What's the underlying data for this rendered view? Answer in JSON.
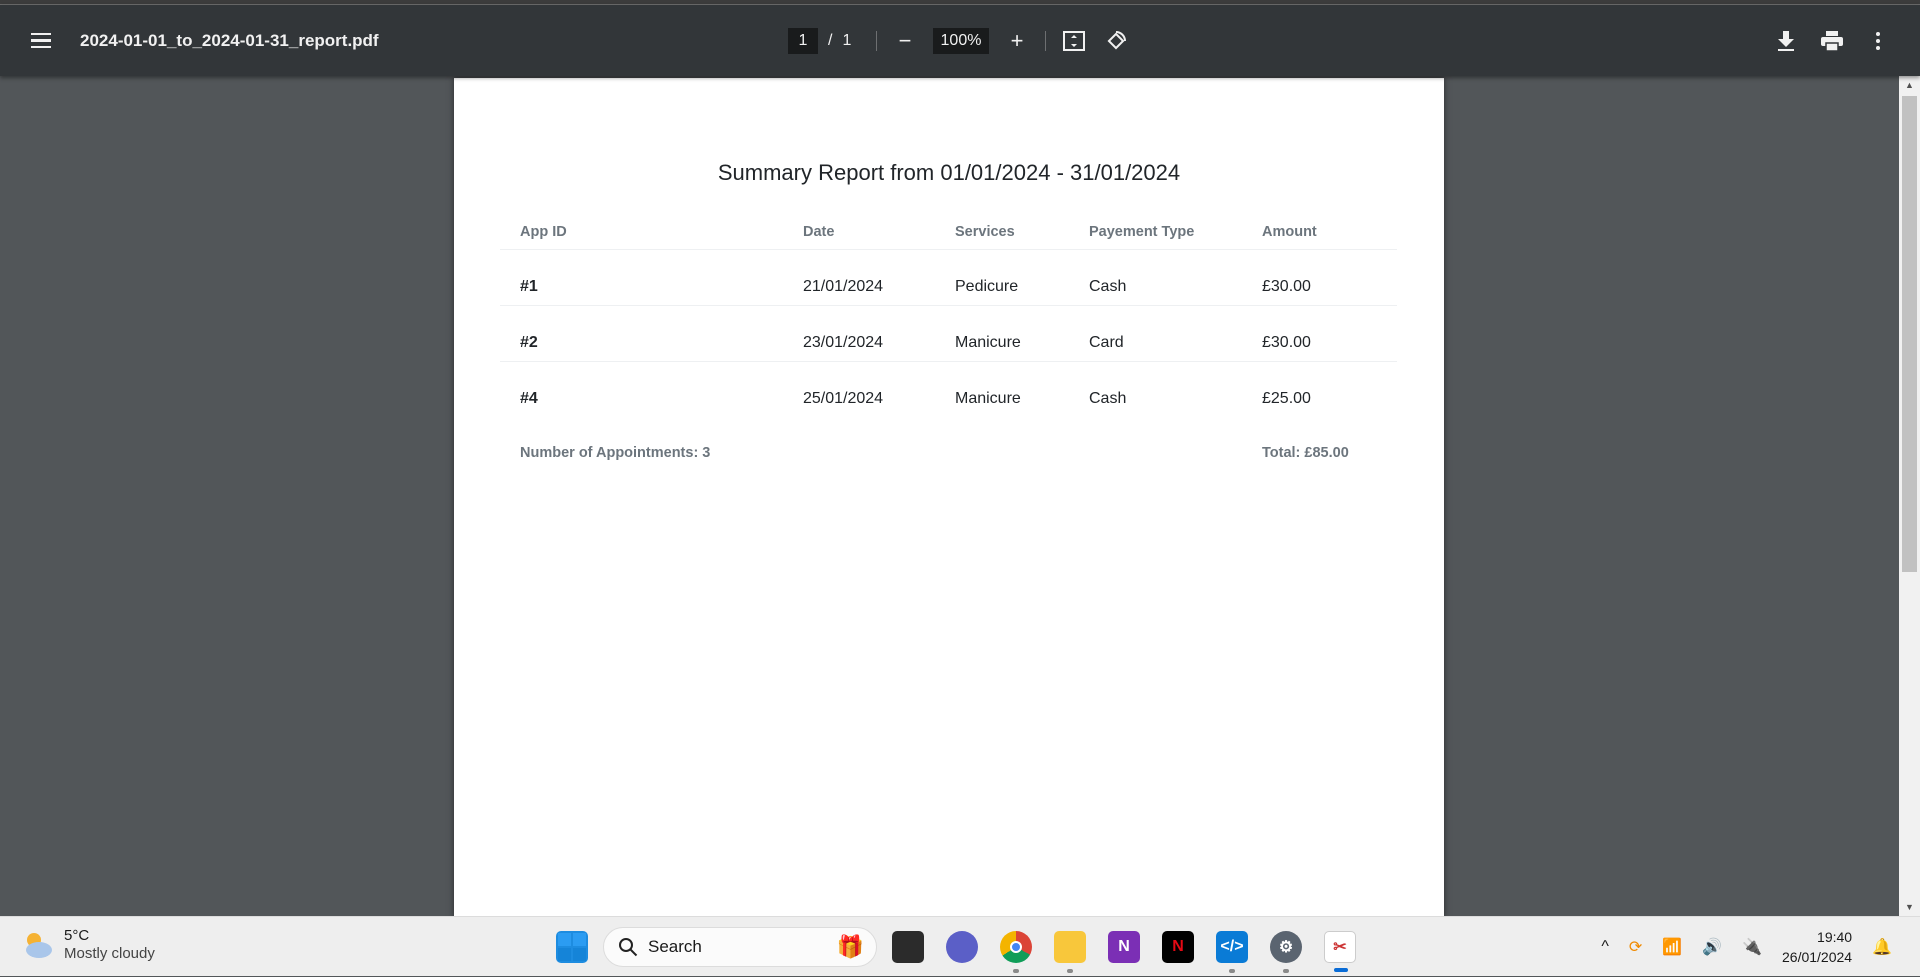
{
  "viewer": {
    "filename": "2024-01-01_to_2024-01-31_report.pdf",
    "current_page": "1",
    "page_sep": "/",
    "total_pages": "1",
    "zoom": "100%"
  },
  "report": {
    "title": "Summary Report from 01/01/2024 - 31/01/2024",
    "columns": [
      "App ID",
      "Date",
      "Services",
      "Payement Type",
      "Amount"
    ],
    "rows": [
      [
        "#1",
        "21/01/2024",
        "Pedicure",
        "Cash",
        "£30.00"
      ],
      [
        "#2",
        "23/01/2024",
        "Manicure",
        "Card",
        "£30.00"
      ],
      [
        "#4",
        "25/01/2024",
        "Manicure",
        "Cash",
        "£25.00"
      ]
    ],
    "count": "Number of Appointments: 3",
    "total": "Total: £85.00"
  },
  "taskbar": {
    "temp": "5°C",
    "weather": "Mostly cloudy",
    "search": "Search",
    "time": "19:40",
    "date": "26/01/2024"
  }
}
